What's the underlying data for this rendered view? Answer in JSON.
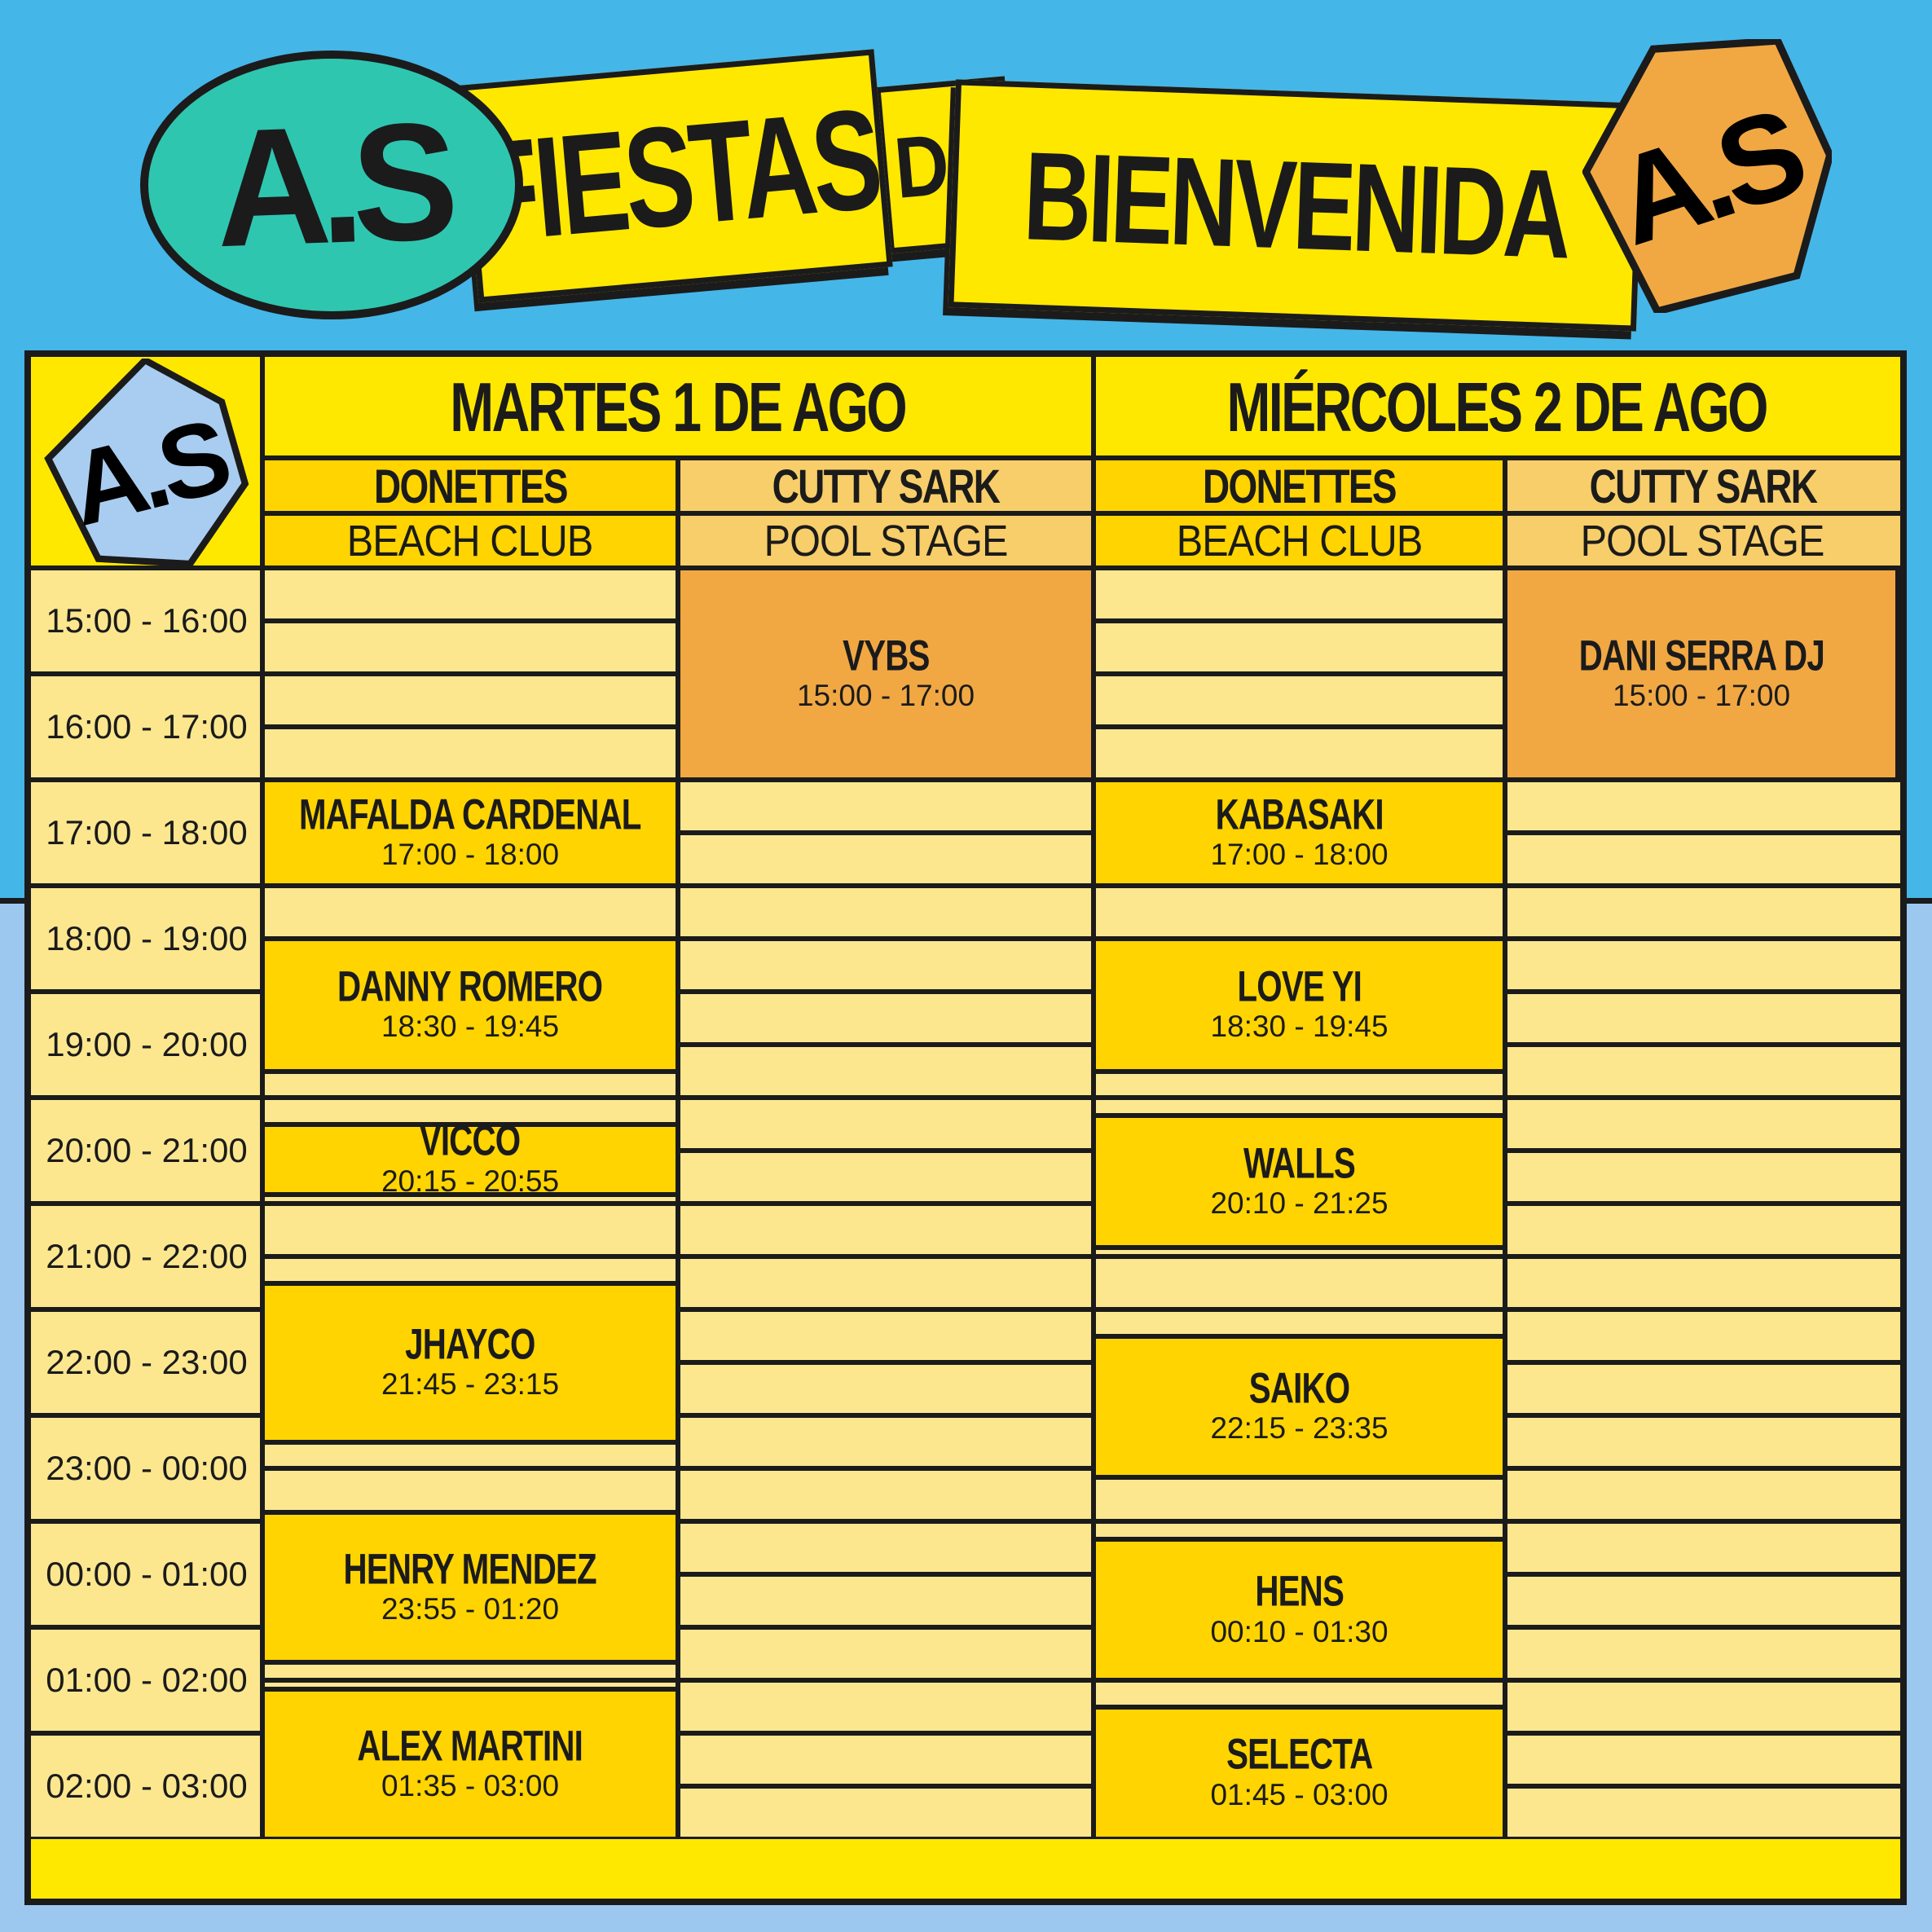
{
  "colors": {
    "sky_blue": "#45B6E8",
    "light_blue": "#9CC8F0",
    "bright_yellow": "#FFE800",
    "gold": "#FFD400",
    "amber": "#F8CE6A",
    "orange": "#F1A843",
    "cream": "#FCE78F",
    "teal": "#2FC6B0",
    "logo_blue": "#A9CDF0",
    "ink": "#1B1B1B"
  },
  "banner": {
    "logo_left": "A.S",
    "fiestas": "FIESTAS",
    "de": "DE",
    "bienvenida": "BIENVENIDA",
    "logo_right": "A.S"
  },
  "table": {
    "logo": "A.S",
    "days": [
      {
        "label": "MARTES 1 DE AGO",
        "venues": [
          {
            "name": "DONETTES",
            "stage": "BEACH CLUB"
          },
          {
            "name": "CUTTY SARK",
            "stage": "POOL STAGE"
          }
        ]
      },
      {
        "label": "MIÉRCOLES 2 DE AGO",
        "venues": [
          {
            "name": "DONETTES",
            "stage": "BEACH CLUB"
          },
          {
            "name": "CUTTY SARK",
            "stage": "POOL STAGE"
          }
        ]
      }
    ],
    "time_slots": [
      "15:00 - 16:00",
      "16:00 - 17:00",
      "17:00 - 18:00",
      "18:00 - 19:00",
      "19:00 - 20:00",
      "20:00 - 21:00",
      "21:00 - 22:00",
      "22:00 - 23:00",
      "23:00 - 00:00",
      "00:00 - 01:00",
      "01:00 - 02:00",
      "02:00 - 03:00"
    ],
    "events": [
      {
        "name": "VYBS",
        "time": "15:00 - 17:00",
        "column": 1,
        "start": 0,
        "end": 2,
        "variant": "orange"
      },
      {
        "name": "MAFALDA CARDENAL",
        "time": "17:00 - 18:00",
        "column": 0,
        "start": 2,
        "end": 3,
        "variant": "gold"
      },
      {
        "name": "DANNY ROMERO",
        "time": "18:30 - 19:45",
        "column": 0,
        "start": 3.5,
        "end": 4.75,
        "variant": "gold"
      },
      {
        "name": "VICCO",
        "time": "20:15 - 20:55",
        "column": 0,
        "start": 5.25,
        "end": 5.9167,
        "variant": "gold"
      },
      {
        "name": "JHAYCO",
        "time": "21:45 - 23:15",
        "column": 0,
        "start": 6.75,
        "end": 8.25,
        "variant": "gold"
      },
      {
        "name": "HENRY MENDEZ",
        "time": "23:55 - 01:20",
        "column": 0,
        "start": 8.9167,
        "end": 10.3333,
        "variant": "gold"
      },
      {
        "name": "ALEX MARTINI",
        "time": "01:35 - 03:00",
        "column": 0,
        "start": 10.5833,
        "end": 12,
        "variant": "gold"
      },
      {
        "name": "KABASAKI",
        "time": "17:00 - 18:00",
        "column": 2,
        "start": 2,
        "end": 3,
        "variant": "gold"
      },
      {
        "name": "LOVE YI",
        "time": "18:30 - 19:45",
        "column": 2,
        "start": 3.5,
        "end": 4.75,
        "variant": "gold"
      },
      {
        "name": "WALLS",
        "time": "20:10 - 21:25",
        "column": 2,
        "start": 5.1667,
        "end": 6.4167,
        "variant": "gold"
      },
      {
        "name": "SAIKO",
        "time": "22:15 - 23:35",
        "column": 2,
        "start": 7.25,
        "end": 8.5833,
        "variant": "gold"
      },
      {
        "name": "HENS",
        "time": "00:10 - 01:30",
        "column": 2,
        "start": 9.1667,
        "end": 10.5,
        "variant": "gold"
      },
      {
        "name": "SELECTA",
        "time": "01:45 - 03:00",
        "column": 2,
        "start": 10.75,
        "end": 12,
        "variant": "gold"
      },
      {
        "name": "DANI SERRA DJ",
        "time": "15:00 - 17:00",
        "column": 3,
        "start": 0,
        "end": 2,
        "variant": "orange"
      }
    ]
  }
}
